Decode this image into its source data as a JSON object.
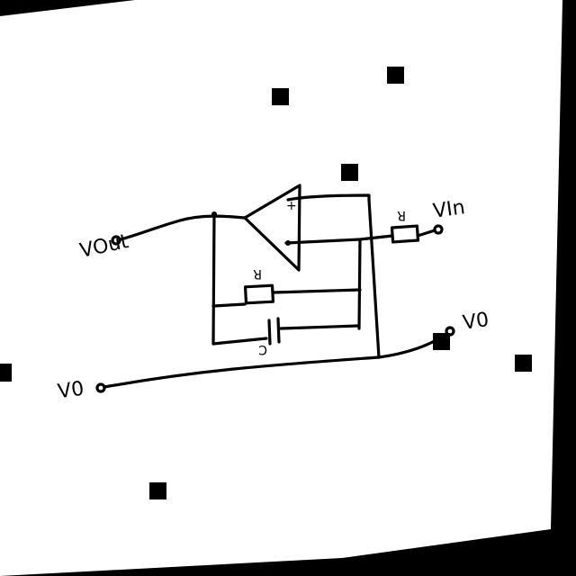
{
  "diagram": {
    "labels": {
      "v_out": "VOut",
      "v_in": "VIn",
      "v0_left": "V0",
      "v0_right": "V0",
      "r_input": "R",
      "r_feedback": "R",
      "c_feedback": "C",
      "op_plus": "+",
      "op_minus": "-"
    },
    "colors": {
      "paper": "#ffffff",
      "ink": "#000000",
      "background": "#000000"
    }
  }
}
